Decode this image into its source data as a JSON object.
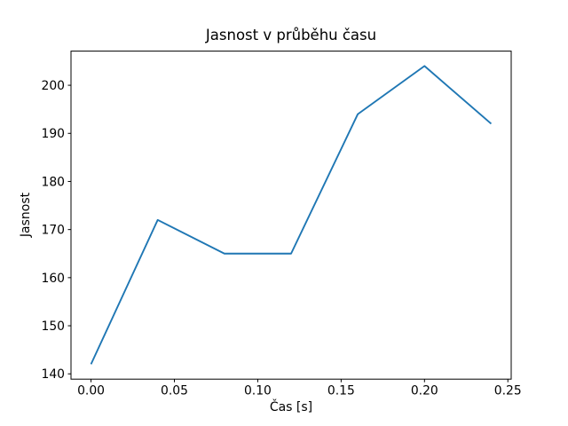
{
  "chart_data": {
    "type": "line",
    "title": "Jasnost v průběhu času",
    "xlabel": "Čas [s]",
    "ylabel": "Jasnost",
    "x": [
      0.0,
      0.04,
      0.08,
      0.12,
      0.16,
      0.2,
      0.24
    ],
    "y": [
      142,
      172,
      165,
      165,
      194,
      204,
      192
    ],
    "xlim": [
      -0.012,
      0.252
    ],
    "ylim": [
      138.9,
      207.1
    ],
    "xticks": [
      0.0,
      0.05,
      0.1,
      0.15,
      0.2,
      0.25
    ],
    "xtick_labels": [
      "0.00",
      "0.05",
      "0.10",
      "0.15",
      "0.20",
      "0.25"
    ],
    "yticks": [
      140,
      150,
      160,
      170,
      180,
      190,
      200
    ],
    "ytick_labels": [
      "140",
      "150",
      "160",
      "170",
      "180",
      "190",
      "200"
    ],
    "line_color": "#1f77b4",
    "axis_color": "#000000",
    "grid": false,
    "legend_position": "none"
  }
}
